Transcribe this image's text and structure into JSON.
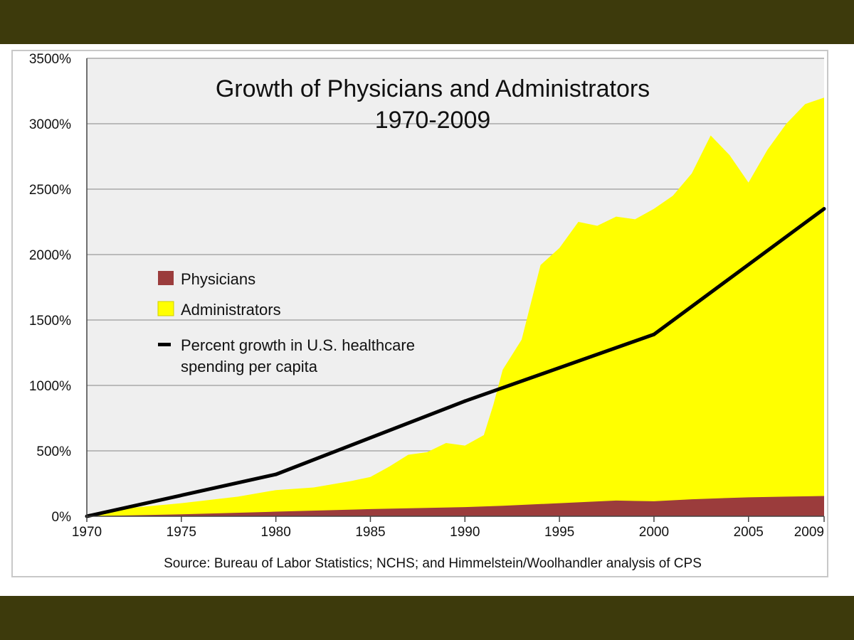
{
  "chart_data": {
    "type": "area",
    "title": "Growth of Physicians and Administrators",
    "subtitle": "1970-2009",
    "xlabel": "",
    "ylabel": "",
    "xlim": [
      1970,
      2009
    ],
    "ylim": [
      0,
      3500
    ],
    "x_ticks": [
      1970,
      1975,
      1980,
      1985,
      1990,
      1995,
      2000,
      2005,
      2009
    ],
    "x_tick_labels": [
      "1970",
      "1975",
      "1980",
      "1985",
      "1990",
      "1995",
      "2000",
      "2005",
      "2009"
    ],
    "y_ticks": [
      0,
      500,
      1000,
      1500,
      2000,
      2500,
      3000,
      3500
    ],
    "y_tick_labels": [
      "0%",
      "500%",
      "1000%",
      "1500%",
      "2000%",
      "2500%",
      "3000%",
      "3500%"
    ],
    "grid": "horizontal",
    "legend_position": "left-middle",
    "series": [
      {
        "name": "Physicians",
        "kind": "area",
        "color": "#9b3c3c",
        "x": [
          1970,
          1975,
          1980,
          1985,
          1990,
          1992,
          1995,
          1998,
          2000,
          2002,
          2005,
          2007,
          2009
        ],
        "values": [
          0,
          15,
          35,
          55,
          70,
          80,
          100,
          120,
          115,
          130,
          145,
          150,
          155
        ]
      },
      {
        "name": "Administrators",
        "kind": "area",
        "color": "#ffff00",
        "x": [
          1970,
          1972,
          1975,
          1978,
          1980,
          1982,
          1984,
          1985,
          1986,
          1987,
          1988,
          1989,
          1990,
          1991,
          1991.5,
          1992,
          1993,
          1994,
          1995,
          1996,
          1997,
          1998,
          1999,
          2000,
          2001,
          2002,
          2003,
          2004,
          2005,
          2006,
          2007,
          2008,
          2009
        ],
        "values": [
          0,
          60,
          100,
          150,
          200,
          220,
          270,
          300,
          380,
          470,
          490,
          560,
          540,
          620,
          850,
          1120,
          1350,
          1920,
          2050,
          2250,
          2220,
          2290,
          2270,
          2350,
          2450,
          2620,
          2910,
          2760,
          2550,
          2800,
          3000,
          3150,
          3200
        ]
      },
      {
        "name": "Percent growth in U.S. healthcare spending per capita",
        "kind": "line",
        "color": "#000000",
        "x": [
          1970,
          1980,
          1990,
          2000,
          2009
        ],
        "values": [
          0,
          320,
          880,
          1390,
          2350
        ]
      }
    ],
    "legend_labels": {
      "physicians": "Physicians",
      "administrators": "Administrators",
      "spending_line_1": "Percent growth in U.S. healthcare",
      "spending_line_2": "spending per capita"
    },
    "source": "Source: Bureau of Labor Statistics; NCHS; and Himmelstein/Woolhandler analysis of CPS"
  }
}
